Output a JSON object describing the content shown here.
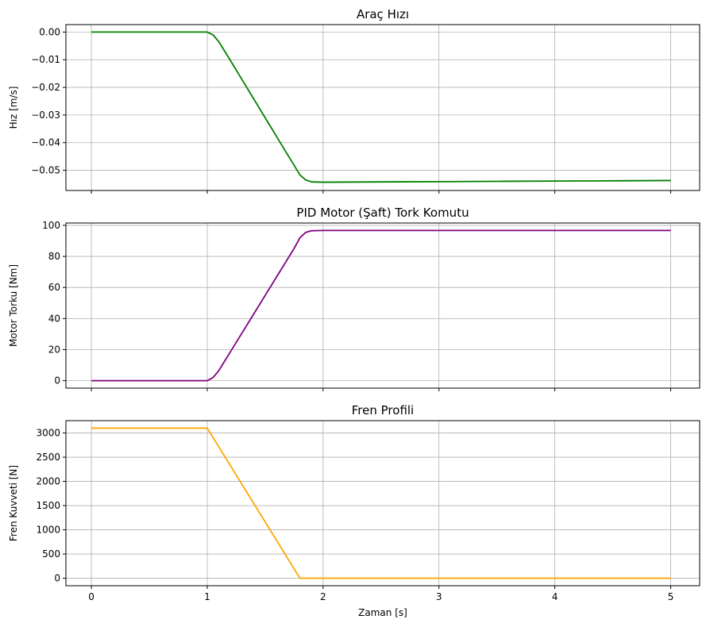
{
  "chart_data": [
    {
      "type": "line",
      "title": "Araç Hızı",
      "xlabel": "",
      "ylabel": "Hız  [m/s]",
      "xlim": [
        -0.22,
        5.25
      ],
      "ylim": [
        -0.0573,
        0.0027
      ],
      "xticks": [
        0,
        1,
        2,
        3,
        4,
        5
      ],
      "xtick_labels": [
        "",
        "",
        "",
        "",
        "",
        ""
      ],
      "yticks": [
        0.0,
        -0.01,
        -0.02,
        -0.03,
        -0.04,
        -0.05
      ],
      "ytick_labels": [
        "0.00",
        "−0.01",
        "−0.02",
        "−0.03",
        "−0.04",
        "−0.05"
      ],
      "grid": true,
      "series": [
        {
          "color": "#008000",
          "x": [
            0,
            0.5,
            1.0,
            1.05,
            1.1,
            1.2,
            1.3,
            1.4,
            1.5,
            1.6,
            1.7,
            1.75,
            1.8,
            1.85,
            1.9,
            2.0,
            2.5,
            3.0,
            3.5,
            4.0,
            4.5,
            5.0
          ],
          "y": [
            0,
            0,
            0,
            -0.001,
            -0.0035,
            -0.0103,
            -0.0172,
            -0.0241,
            -0.031,
            -0.0379,
            -0.0448,
            -0.0482,
            -0.0517,
            -0.0535,
            -0.0542,
            -0.0543,
            -0.0542,
            -0.0541,
            -0.054,
            -0.0539,
            -0.0538,
            -0.0537
          ]
        }
      ]
    },
    {
      "type": "line",
      "title": "PID Motor (Şaft) Tork Komutu",
      "xlabel": "",
      "ylabel": "Motor Torku  [Nm]",
      "xlim": [
        -0.22,
        5.25
      ],
      "ylim": [
        -4.8,
        101.5
      ],
      "xticks": [
        0,
        1,
        2,
        3,
        4,
        5
      ],
      "xtick_labels": [
        "",
        "",
        "",
        "",
        "",
        ""
      ],
      "yticks": [
        0,
        20,
        40,
        60,
        80,
        100
      ],
      "ytick_labels": [
        "0",
        "20",
        "40",
        "60",
        "80",
        "100"
      ],
      "grid": true,
      "series": [
        {
          "color": "#800080",
          "x": [
            0,
            0.5,
            1.0,
            1.05,
            1.1,
            1.2,
            1.3,
            1.4,
            1.5,
            1.6,
            1.7,
            1.75,
            1.8,
            1.85,
            1.9,
            2.0,
            2.5,
            3.0,
            3.5,
            4.0,
            4.5,
            5.0
          ],
          "y": [
            0,
            0,
            0,
            2,
            6.5,
            18.6,
            30.7,
            42.8,
            54.9,
            67,
            79.1,
            85.2,
            92,
            95.5,
            96.5,
            96.7,
            96.7,
            96.7,
            96.7,
            96.7,
            96.7,
            96.7
          ]
        }
      ]
    },
    {
      "type": "line",
      "title": "Fren Profili",
      "xlabel": "Zaman [s]",
      "ylabel": "Fren Kuvveti  [N]",
      "xlim": [
        -0.22,
        5.25
      ],
      "ylim": [
        -155,
        3255
      ],
      "xticks": [
        0,
        1,
        2,
        3,
        4,
        5
      ],
      "xtick_labels": [
        "0",
        "1",
        "2",
        "3",
        "4",
        "5"
      ],
      "yticks": [
        0,
        500,
        1000,
        1500,
        2000,
        2500,
        3000
      ],
      "ytick_labels": [
        "0",
        "500",
        "1000",
        "1500",
        "2000",
        "2500",
        "3000"
      ],
      "grid": true,
      "series": [
        {
          "color": "#ffa500",
          "x": [
            0,
            1.0,
            1.8,
            5.0
          ],
          "y": [
            3100,
            3100,
            0,
            0
          ]
        }
      ]
    }
  ]
}
